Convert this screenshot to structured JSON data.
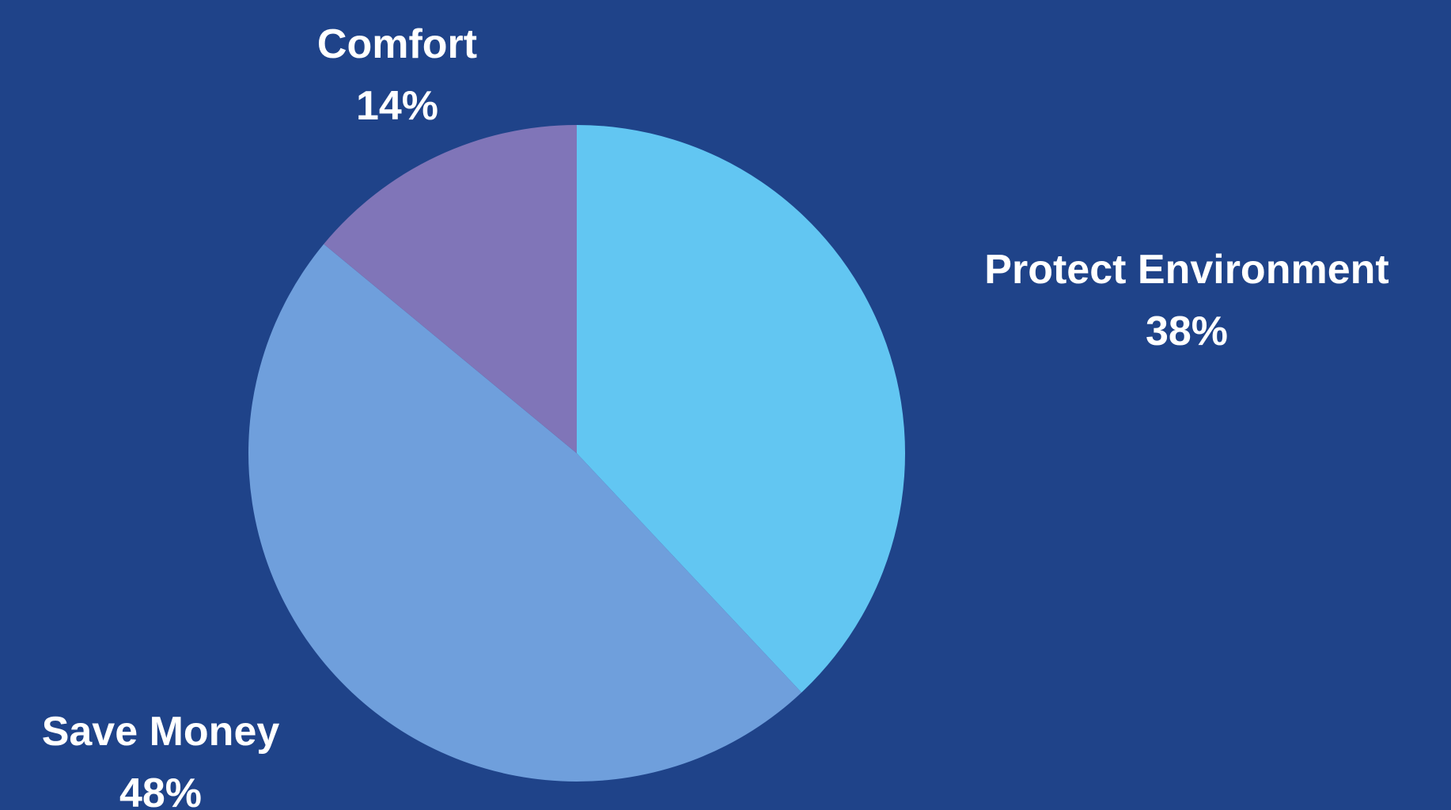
{
  "colors": {
    "background": "#1f4389",
    "label_text": "#ffffff"
  },
  "chart_data": {
    "type": "pie",
    "title": "",
    "start_angle_deg": 0,
    "direction": "clockwise",
    "slices": [
      {
        "label": "Protect Environment",
        "value": 38,
        "value_label": "38%",
        "color": "#62c6f2"
      },
      {
        "label": "Save Money",
        "value": 48,
        "value_label": "48%",
        "color": "#6f9fdc"
      },
      {
        "label": "Comfort",
        "value": 14,
        "value_label": "14%",
        "color": "#8075b8"
      }
    ]
  }
}
